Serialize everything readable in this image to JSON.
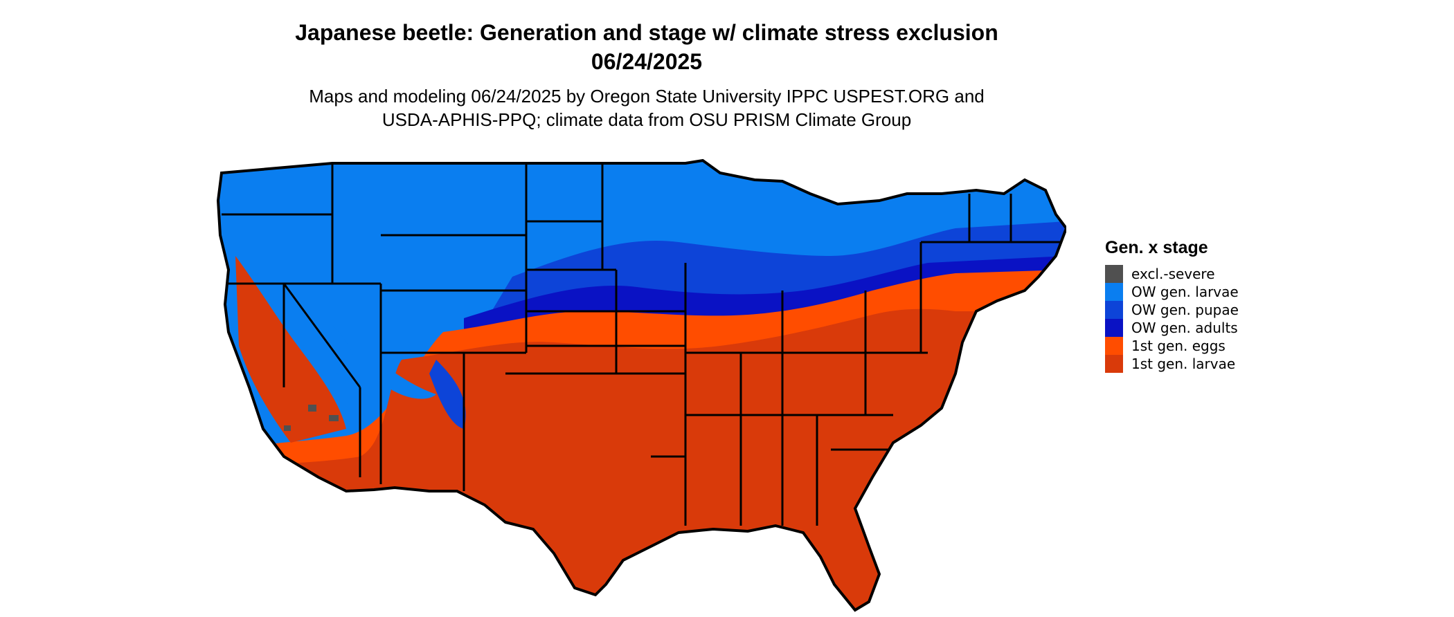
{
  "title": {
    "line1": "Japanese beetle: Generation and stage w/ climate stress exclusion",
    "line2": "06/24/2025"
  },
  "subtitle": {
    "line1": "Maps and modeling 06/24/2025 by Oregon State University IPPC USPEST.ORG and",
    "line2": "USDA-APHIS-PPQ; climate data from OSU PRISM Climate Group"
  },
  "legend": {
    "title": "Gen. x stage",
    "items": [
      {
        "label": "excl.-severe",
        "color": "#505050"
      },
      {
        "label": "OW gen. larvae",
        "color": "#0a7ef0"
      },
      {
        "label": "OW gen. pupae",
        "color": "#0d44d8"
      },
      {
        "label": "OW gen. adults",
        "color": "#0a12c4"
      },
      {
        "label": "1st gen. eggs",
        "color": "#ff4d00"
      },
      {
        "label": "1st gen. larvae",
        "color": "#d93a0a"
      }
    ]
  },
  "map": {
    "region": "Contiguous United States",
    "border_color": "#000000"
  }
}
